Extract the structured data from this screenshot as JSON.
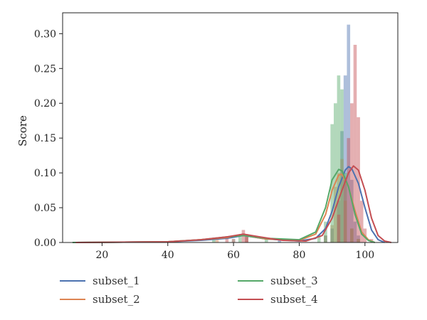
{
  "chart_data": {
    "type": "histogram",
    "title": "",
    "xlabel": "",
    "ylabel": "Score",
    "xlim": [
      8,
      110
    ],
    "ylim": [
      0,
      0.33
    ],
    "xticks": [
      20,
      40,
      60,
      80,
      100
    ],
    "yticks": [
      0.0,
      0.05,
      0.1,
      0.15,
      0.2,
      0.25,
      0.3
    ],
    "ytick_labels": [
      "0.00",
      "0.05",
      "0.10",
      "0.15",
      "0.20",
      "0.25",
      "0.30"
    ],
    "legend_placement": "below",
    "series": [
      {
        "name": "subset_1",
        "color": "#4c72b0",
        "bars": [
          [
            60,
            0.005
          ],
          [
            64,
            0.008
          ],
          [
            74,
            0.006
          ],
          [
            88,
            0.01
          ],
          [
            90,
            0.02
          ],
          [
            92,
            0.06
          ],
          [
            93,
            0.16
          ],
          [
            94,
            0.24
          ],
          [
            95,
            0.313
          ],
          [
            96,
            0.09
          ],
          [
            97,
            0.03
          ],
          [
            98,
            0.01
          ]
        ],
        "kde": [
          [
            12,
            0.0
          ],
          [
            40,
            0.001
          ],
          [
            50,
            0.003
          ],
          [
            58,
            0.006
          ],
          [
            63,
            0.01
          ],
          [
            70,
            0.005
          ],
          [
            80,
            0.002
          ],
          [
            85,
            0.006
          ],
          [
            88,
            0.02
          ],
          [
            90,
            0.045
          ],
          [
            92,
            0.08
          ],
          [
            94,
            0.104
          ],
          [
            95,
            0.109
          ],
          [
            96,
            0.106
          ],
          [
            98,
            0.085
          ],
          [
            100,
            0.05
          ],
          [
            102,
            0.018
          ],
          [
            104,
            0.004
          ],
          [
            106,
            0.0
          ]
        ]
      },
      {
        "name": "subset_2",
        "color": "#dd8452",
        "bars": [
          [
            55,
            0.006
          ],
          [
            60,
            0.005
          ],
          [
            64,
            0.01
          ],
          [
            88,
            0.01
          ],
          [
            90,
            0.025
          ],
          [
            91,
            0.08
          ],
          [
            92,
            0.1
          ],
          [
            93,
            0.12
          ],
          [
            94,
            0.06
          ],
          [
            96,
            0.02
          ],
          [
            98,
            0.005
          ]
        ],
        "kde": [
          [
            12,
            0.0
          ],
          [
            40,
            0.001
          ],
          [
            50,
            0.004
          ],
          [
            58,
            0.007
          ],
          [
            62,
            0.011
          ],
          [
            70,
            0.005
          ],
          [
            80,
            0.003
          ],
          [
            85,
            0.012
          ],
          [
            88,
            0.04
          ],
          [
            90,
            0.075
          ],
          [
            92,
            0.097
          ],
          [
            93,
            0.098
          ],
          [
            95,
            0.08
          ],
          [
            97,
            0.045
          ],
          [
            99,
            0.015
          ],
          [
            101,
            0.004
          ],
          [
            103,
            0.0
          ]
        ]
      },
      {
        "name": "subset_3",
        "color": "#55a868",
        "bars": [
          [
            54,
            0.005
          ],
          [
            62,
            0.008
          ],
          [
            70,
            0.006
          ],
          [
            86,
            0.01
          ],
          [
            88,
            0.03
          ],
          [
            90,
            0.17
          ],
          [
            91,
            0.2
          ],
          [
            92,
            0.24
          ],
          [
            93,
            0.22
          ],
          [
            94,
            0.1
          ],
          [
            96,
            0.02
          ],
          [
            98,
            0.005
          ]
        ],
        "kde": [
          [
            11,
            0.0
          ],
          [
            40,
            0.001
          ],
          [
            50,
            0.004
          ],
          [
            58,
            0.008
          ],
          [
            63,
            0.01
          ],
          [
            70,
            0.006
          ],
          [
            80,
            0.004
          ],
          [
            85,
            0.015
          ],
          [
            88,
            0.05
          ],
          [
            90,
            0.09
          ],
          [
            92,
            0.105
          ],
          [
            93,
            0.103
          ],
          [
            95,
            0.08
          ],
          [
            97,
            0.04
          ],
          [
            99,
            0.012
          ],
          [
            101,
            0.003
          ],
          [
            103,
            0.0
          ]
        ]
      },
      {
        "name": "subset_4",
        "color": "#c44e52",
        "bars": [
          [
            58,
            0.006
          ],
          [
            63,
            0.018
          ],
          [
            64,
            0.012
          ],
          [
            92,
            0.04
          ],
          [
            94,
            0.09
          ],
          [
            95,
            0.15
          ],
          [
            96,
            0.2
          ],
          [
            97,
            0.284
          ],
          [
            98,
            0.18
          ],
          [
            99,
            0.06
          ],
          [
            100,
            0.02
          ],
          [
            102,
            0.005
          ]
        ],
        "kde": [
          [
            12,
            0.0
          ],
          [
            40,
            0.001
          ],
          [
            50,
            0.004
          ],
          [
            58,
            0.008
          ],
          [
            63,
            0.012
          ],
          [
            68,
            0.008
          ],
          [
            75,
            0.003
          ],
          [
            82,
            0.002
          ],
          [
            87,
            0.01
          ],
          [
            90,
            0.035
          ],
          [
            93,
            0.075
          ],
          [
            95,
            0.1
          ],
          [
            96.5,
            0.11
          ],
          [
            98,
            0.104
          ],
          [
            100,
            0.075
          ],
          [
            102,
            0.035
          ],
          [
            104,
            0.01
          ],
          [
            106,
            0.002
          ],
          [
            108,
            0.0
          ]
        ]
      }
    ]
  }
}
